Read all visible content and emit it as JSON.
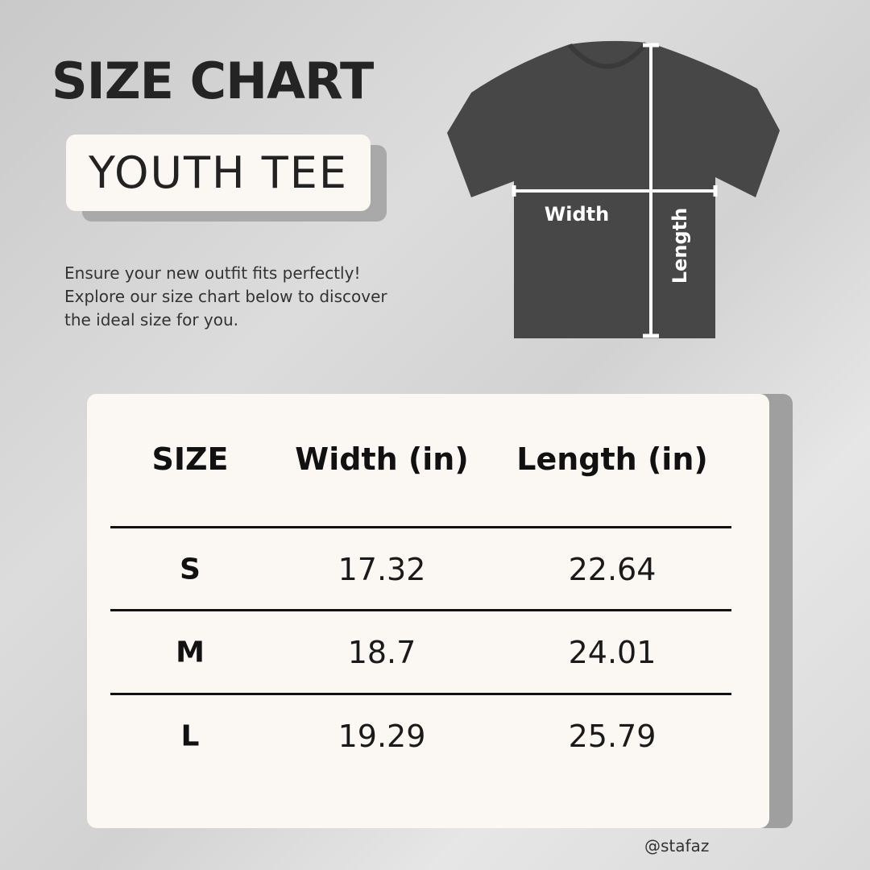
{
  "title": "SIZE CHART",
  "subtitle": "YOUTH TEE",
  "intro": "Ensure your new outfit fits perfectly! Explore our size chart below to discover the ideal size for you.",
  "diagram": {
    "width_label": "Width",
    "length_label": "Length",
    "shirt_color": "#474747"
  },
  "table": {
    "headers": [
      "SIZE",
      "Width (in)",
      "Length (in)"
    ],
    "rows": [
      {
        "size": "S",
        "width": "17.32",
        "length": "22.64"
      },
      {
        "size": "M",
        "width": "18.7",
        "length": "24.01"
      },
      {
        "size": "L",
        "width": "19.29",
        "length": "25.79"
      }
    ]
  },
  "handle": "@stafaz"
}
